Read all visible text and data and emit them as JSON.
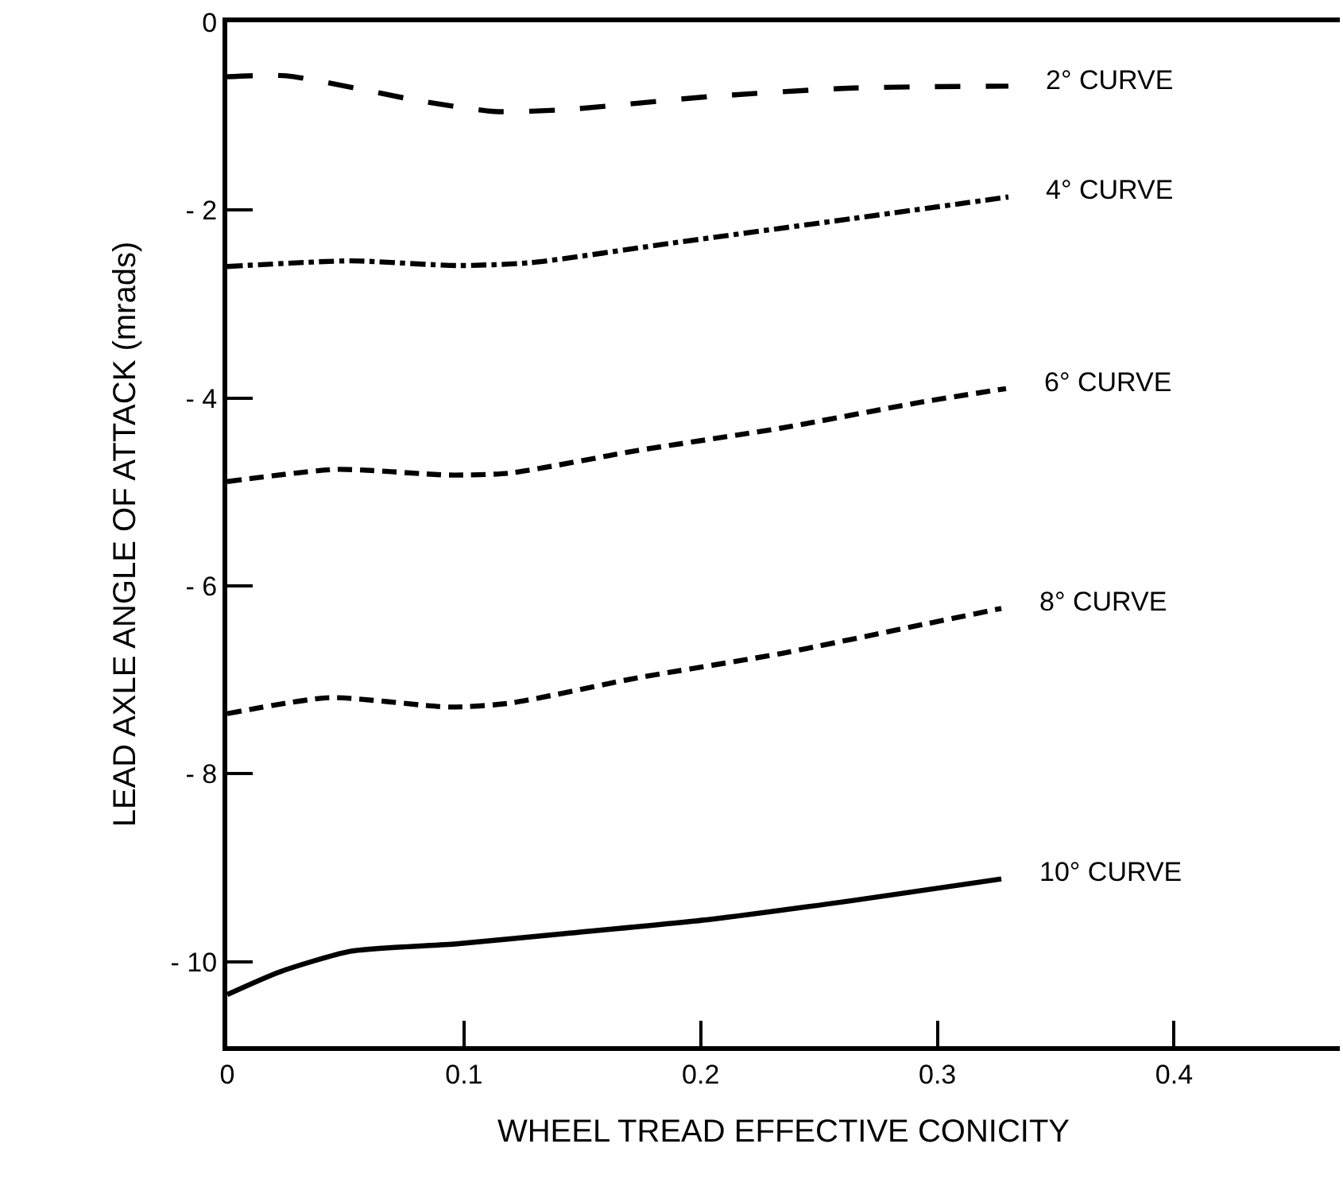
{
  "chart_data": {
    "type": "line",
    "xlabel": "WHEEL TREAD EFFECTIVE CONICITY",
    "ylabel": "LEAD AXLE ANGLE OF ATTACK (mrads)",
    "xlim": [
      0,
      0.47
    ],
    "xticks": [
      0,
      0.1,
      0.2,
      0.3,
      0.4
    ],
    "ylim": [
      -10.9,
      0
    ],
    "yticks": [
      0,
      -2,
      -4,
      -6,
      -8,
      -10
    ],
    "legend": false,
    "marker": "none",
    "series": [
      {
        "name": "2° CURVE",
        "color": "#000000",
        "line_style": "longdash",
        "x": [
          0,
          0.025,
          0.082,
          0.113,
          0.143,
          0.204,
          0.264,
          0.33
        ],
        "values": [
          -0.58,
          -0.57,
          -0.84,
          -0.95,
          -0.93,
          -0.79,
          -0.7,
          -0.68
        ]
      },
      {
        "name": "4° CURVE",
        "color": "#000000",
        "line_style": "dashdot",
        "x": [
          0,
          0.052,
          0.097,
          0.128,
          0.188,
          0.264,
          0.33
        ],
        "values": [
          -2.6,
          -2.54,
          -2.59,
          -2.56,
          -2.35,
          -2.09,
          -1.86
        ]
      },
      {
        "name": "6° CURVE",
        "color": "#000000",
        "line_style": "dashed",
        "x": [
          0,
          0.046,
          0.094,
          0.119,
          0.173,
          0.234,
          0.294,
          0.329
        ],
        "values": [
          -4.89,
          -4.76,
          -4.82,
          -4.8,
          -4.56,
          -4.32,
          -4.04,
          -3.9
        ]
      },
      {
        "name": "8° CURVE",
        "color": "#000000",
        "line_style": "dashed",
        "x": [
          0,
          0.043,
          0.094,
          0.119,
          0.173,
          0.234,
          0.294,
          0.327
        ],
        "values": [
          -7.36,
          -7.19,
          -7.29,
          -7.25,
          -6.98,
          -6.72,
          -6.41,
          -6.24
        ]
      },
      {
        "name": "10° CURVE",
        "color": "#000000",
        "line_style": "solid",
        "x": [
          0,
          0.022,
          0.052,
          0.097,
          0.143,
          0.204,
          0.264,
          0.327
        ],
        "values": [
          -10.35,
          -10.11,
          -9.89,
          -9.81,
          -9.7,
          -9.55,
          -9.35,
          -9.12
        ]
      }
    ]
  }
}
